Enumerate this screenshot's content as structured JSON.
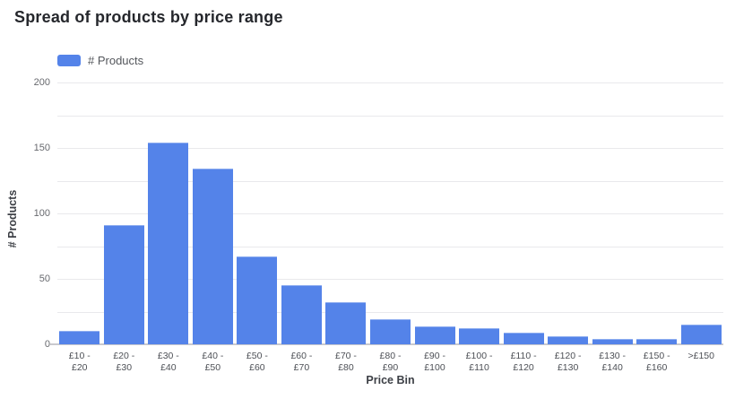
{
  "title": "Spread of products by price range",
  "legend": {
    "label": "# Products",
    "swatch_color": "#5483e9"
  },
  "colors": {
    "bar": "#5483e9",
    "gridline": "#e9e9ec",
    "axis_line": "#c9c9ce",
    "title_text": "#25272c",
    "tick_text": "#4d5056",
    "background": "#ffffff"
  },
  "chart_data": {
    "type": "bar",
    "title": "Spread of products by price range",
    "xlabel": "Price Bin",
    "ylabel": "# Products",
    "legend_entries": [
      "# Products"
    ],
    "legend_position": "top-left",
    "categories": [
      "£10 - £20",
      "£20 - £30",
      "£30 - £40",
      "£40 - £50",
      "£50 - £60",
      "£60 - £70",
      "£70 - £80",
      "£80 - £90",
      "£90 - £100",
      "£100 - £110",
      "£110 - £120",
      "£120 - £130",
      "£130 - £140",
      "£150 - £160",
      ">£150"
    ],
    "category_lines": [
      [
        "£10 -",
        "£20"
      ],
      [
        "£20 -",
        "£30"
      ],
      [
        "£30 -",
        "£40"
      ],
      [
        "£40 -",
        "£50"
      ],
      [
        "£50 -",
        "£60"
      ],
      [
        "£60 -",
        "£70"
      ],
      [
        "£70 -",
        "£80"
      ],
      [
        "£80 -",
        "£90"
      ],
      [
        "£90 -",
        "£100"
      ],
      [
        "£100 -",
        "£110"
      ],
      [
        "£110 -",
        "£120"
      ],
      [
        "£120 -",
        "£130"
      ],
      [
        "£130 -",
        "£140"
      ],
      [
        "£150 -",
        "£160"
      ],
      [
        ">£150"
      ]
    ],
    "values": [
      10,
      91,
      154,
      134,
      67,
      45,
      32,
      19,
      14,
      12,
      9,
      6,
      4,
      4,
      15
    ],
    "ylim": [
      0,
      200
    ],
    "yticks": [
      0,
      50,
      100,
      150,
      200
    ],
    "gridline_interval": 25,
    "grid": true
  }
}
